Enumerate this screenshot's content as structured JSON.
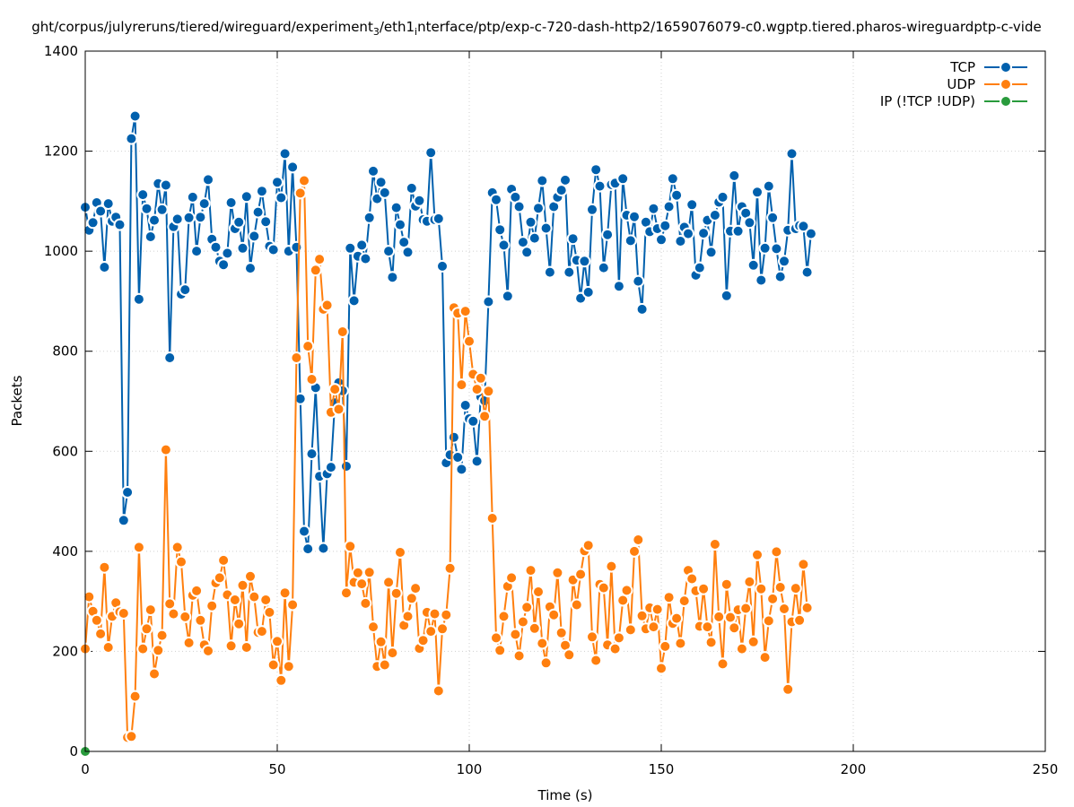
{
  "chart_data": {
    "type": "line",
    "title_main": "ght/corpus/julyreruns/tiered/wireguard/experiment",
    "title_sub1": "3",
    "title_mid": "/eth1",
    "title_sub2": "i",
    "title_end": "nterface/ptp/exp-c-720-dash-http2/1659076079-c0.wgptp.tiered.pharos-wireguardptp-c-vide",
    "xlabel": "Time (s)",
    "ylabel": "Packets",
    "xlim": [
      0,
      250
    ],
    "ylim": [
      0,
      1400
    ],
    "xticks": [
      "0",
      "50",
      "100",
      "150",
      "200",
      "250"
    ],
    "yticks": [
      "0",
      "200",
      "400",
      "600",
      "800",
      "1000",
      "1200",
      "1400"
    ],
    "grid": true,
    "legend_position": "top-right",
    "series": [
      {
        "name": "TCP",
        "color": "#0060ad",
        "values": [
          1088,
          1042,
          1057,
          1097,
          1080,
          968,
          1095,
          1060,
          1068,
          1053,
          462,
          518,
          1225,
          1270,
          904,
          1113,
          1085,
          1029,
          1062,
          1135,
          1083,
          1132,
          787,
          1049,
          1064,
          914,
          923,
          1067,
          1108,
          1000,
          1068,
          1095,
          1143,
          1024,
          1008,
          980,
          973,
          996,
          1097,
          1045,
          1058,
          1006,
          1109,
          966,
          1030,
          1078,
          1120,
          1059,
          1010,
          1003,
          1138,
          1107,
          1195,
          1000,
          1168,
          1008,
          705,
          440,
          405,
          595,
          727,
          550,
          406,
          555,
          568,
          697,
          737,
          721,
          570,
          1006,
          901,
          990,
          1012,
          985,
          1067,
          1160,
          1105,
          1138,
          1117,
          1000,
          948,
          1087,
          1053,
          1018,
          998,
          1126,
          1090,
          1101,
          1063,
          1060,
          1197,
          1063,
          1065,
          970,
          577,
          593,
          628,
          588,
          564,
          692,
          665,
          660,
          580,
          709,
          701,
          899,
          1117,
          1103,
          1043,
          1012,
          910,
          1124,
          1108,
          1089,
          1018,
          998,
          1058,
          1026,
          1086,
          1141,
          1046,
          958,
          1089,
          1108,
          1122,
          1142,
          958,
          1025,
          982,
          906,
          980,
          918,
          1083,
          1163,
          1130,
          967,
          1033,
          1133,
          1136,
          930,
          1145,
          1072,
          1021,
          1069,
          940,
          884,
          1058,
          1039,
          1085,
          1045,
          1023,
          1051,
          1089,
          1145,
          1112,
          1020,
          1048,
          1035,
          1093,
          952,
          967,
          1036,
          1062,
          998,
          1072,
          1098,
          1108,
          911,
          1040,
          1151,
          1040,
          1089,
          1076,
          1057,
          972,
          1118,
          942,
          1006,
          1130,
          1067,
          1005,
          949,
          980,
          1042,
          1195,
          1045,
          1051,
          1050,
          958,
          1035
        ]
      },
      {
        "name": "UDP",
        "color": "#ff7f0e",
        "values": [
          205,
          309,
          280,
          262,
          235,
          368,
          208,
          270,
          297,
          279,
          276,
          28,
          30,
          110,
          408,
          205,
          245,
          283,
          155,
          202,
          232,
          603,
          295,
          275,
          408,
          379,
          269,
          217,
          312,
          321,
          262,
          213,
          201,
          291,
          337,
          347,
          382,
          313,
          211,
          303,
          255,
          332,
          208,
          350,
          309,
          238,
          240,
          303,
          278,
          173,
          220,
          142,
          317,
          170,
          293,
          787,
          1116,
          1141,
          810,
          744,
          962,
          984,
          884,
          892,
          678,
          724,
          684,
          839,
          317,
          410,
          338,
          357,
          335,
          296,
          358,
          249,
          170,
          219,
          173,
          338,
          197,
          316,
          398,
          252,
          270,
          306,
          326,
          206,
          222,
          278,
          240,
          275,
          121,
          245,
          273,
          366,
          887,
          876,
          733,
          880,
          820,
          754,
          724,
          746,
          670,
          720,
          466,
          227,
          202,
          270,
          330,
          347,
          234,
          191,
          259,
          288,
          362,
          246,
          319,
          216,
          177,
          289,
          273,
          357,
          237,
          212,
          193,
          343,
          293,
          354,
          401,
          412,
          229,
          182,
          334,
          327,
          213,
          370,
          205,
          227,
          302,
          322,
          243,
          400,
          423,
          271,
          245,
          287,
          249,
          284,
          166,
          210,
          308,
          256,
          266,
          216,
          301,
          362,
          345,
          321,
          250,
          325,
          249,
          218,
          414,
          269,
          175,
          334,
          268,
          247,
          283,
          205,
          286,
          339,
          219,
          393,
          325,
          188,
          261,
          305,
          399,
          328,
          285,
          124,
          259,
          326,
          262,
          374,
          287
        ]
      },
      {
        "name": "IP (!TCP  !UDP)",
        "color": "#299b3c",
        "values": [
          0
        ]
      }
    ]
  }
}
